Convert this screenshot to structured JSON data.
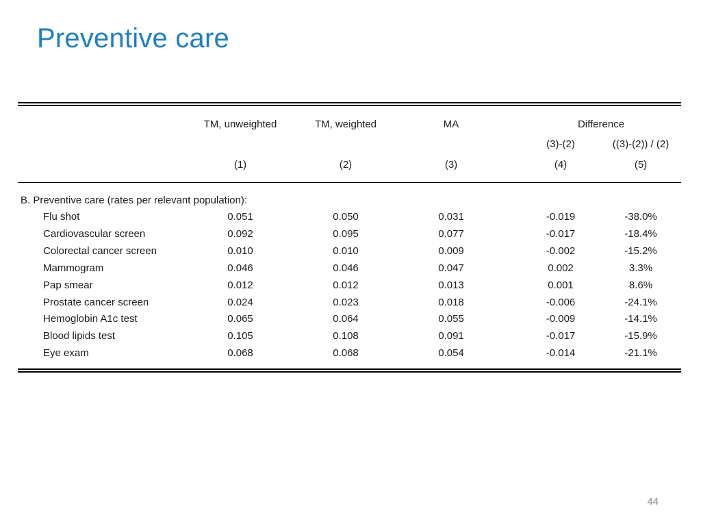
{
  "slide": {
    "title": "Preventive care",
    "page_number": "44"
  },
  "table": {
    "headers": {
      "col1": "TM, unweighted",
      "col2": "TM, weighted",
      "col3": "MA",
      "difference": "Difference",
      "sub4": "(3)-(2)",
      "sub5": "((3)-(2)) / (2)",
      "num1": "(1)",
      "num2": "(2)",
      "num3": "(3)",
      "num4": "(4)",
      "num5": "(5)"
    },
    "section_label": "B. Preventive care (rates per relevant population):",
    "rows": [
      {
        "label": "Flu shot",
        "c1": "0.051",
        "c2": "0.050",
        "c3": "0.031",
        "c4": "-0.019",
        "c5": "-38.0%"
      },
      {
        "label": "Cardiovascular screen",
        "c1": "0.092",
        "c2": "0.095",
        "c3": "0.077",
        "c4": "-0.017",
        "c5": "-18.4%"
      },
      {
        "label": "Colorectal cancer screen",
        "c1": "0.010",
        "c2": "0.010",
        "c3": "0.009",
        "c4": "-0.002",
        "c5": "-15.2%"
      },
      {
        "label": "Mammogram",
        "c1": "0.046",
        "c2": "0.046",
        "c3": "0.047",
        "c4": "0.002",
        "c5": "3.3%"
      },
      {
        "label": "Pap smear",
        "c1": "0.012",
        "c2": "0.012",
        "c3": "0.013",
        "c4": "0.001",
        "c5": "8.6%"
      },
      {
        "label": "Prostate cancer screen",
        "c1": "0.024",
        "c2": "0.023",
        "c3": "0.018",
        "c4": "-0.006",
        "c5": "-24.1%"
      },
      {
        "label": "Hemoglobin A1c test",
        "c1": "0.065",
        "c2": "0.064",
        "c3": "0.055",
        "c4": "-0.009",
        "c5": "-14.1%"
      },
      {
        "label": "Blood lipids test",
        "c1": "0.105",
        "c2": "0.108",
        "c3": "0.091",
        "c4": "-0.017",
        "c5": "-15.9%"
      },
      {
        "label": "Eye exam",
        "c1": "0.068",
        "c2": "0.068",
        "c3": "0.054",
        "c4": "-0.014",
        "c5": "-21.1%"
      }
    ]
  }
}
